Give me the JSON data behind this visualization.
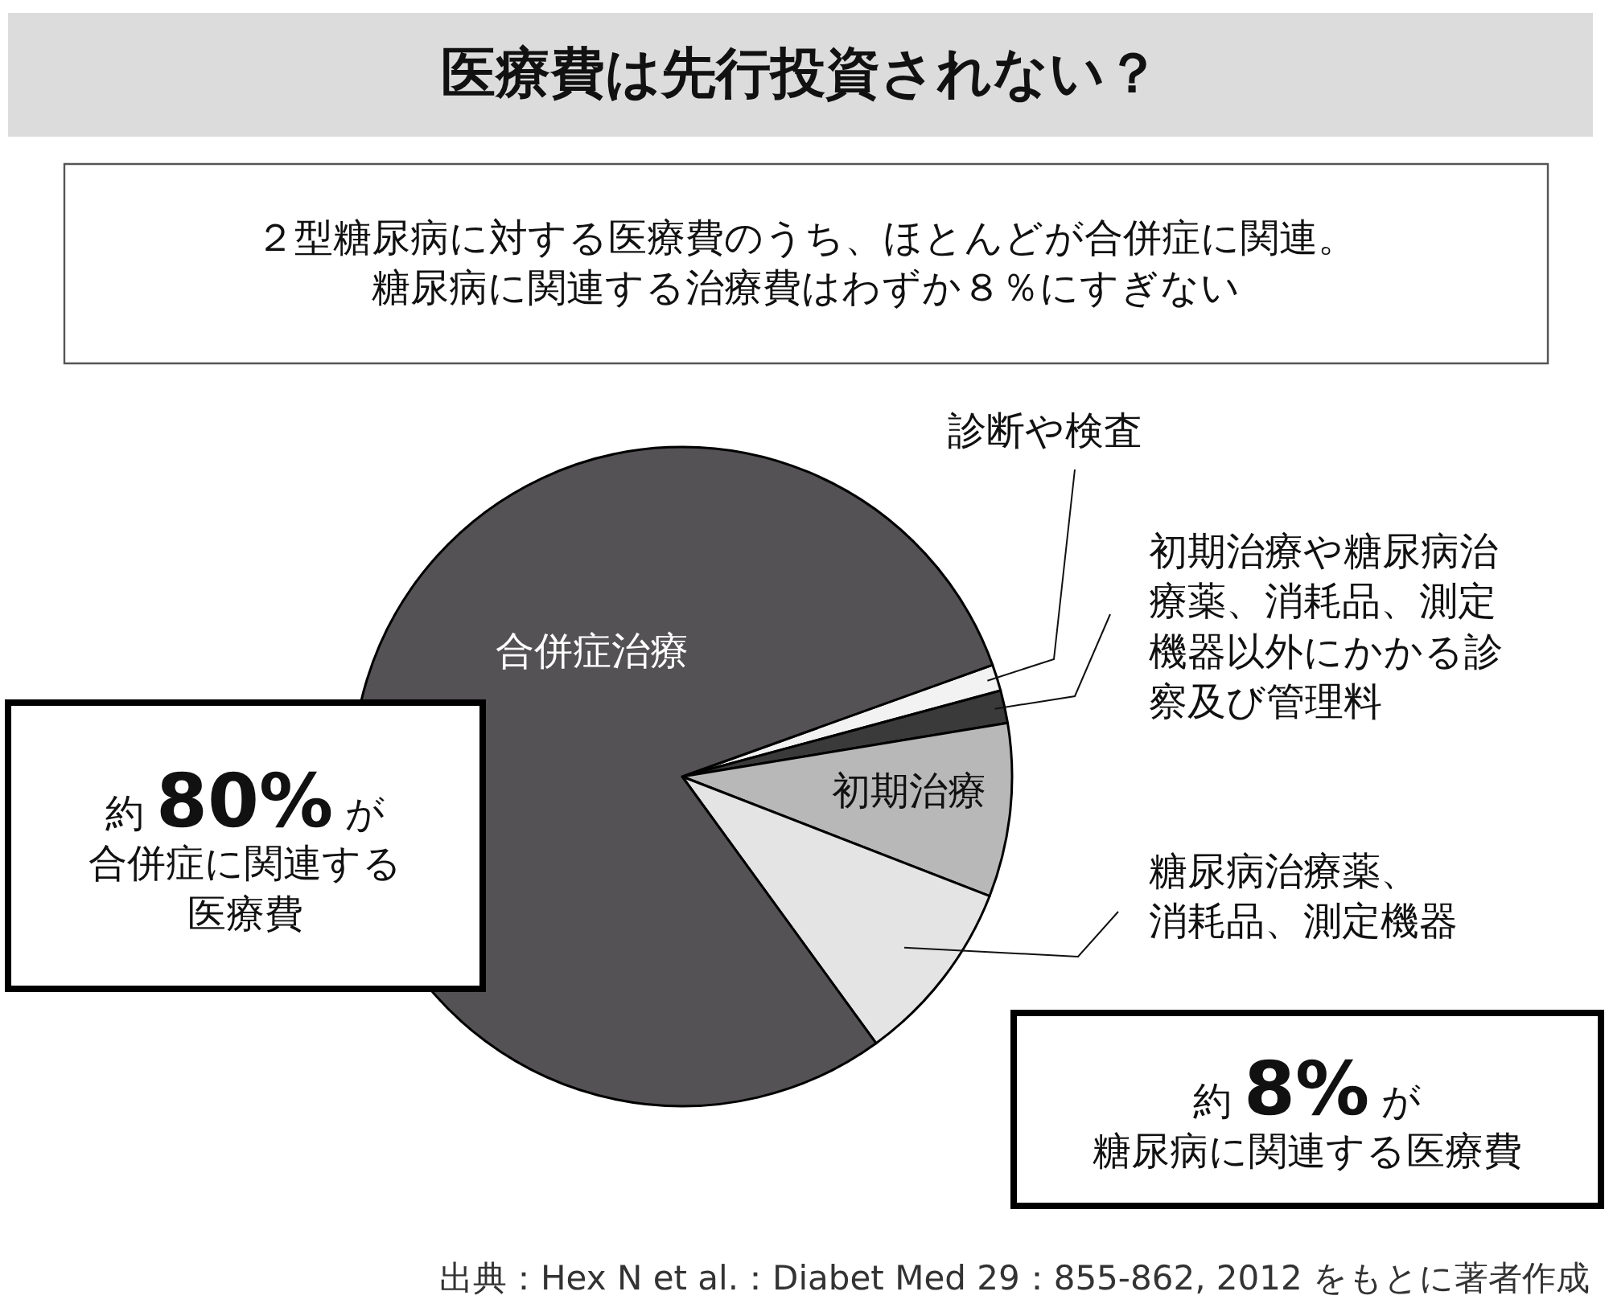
{
  "chart_data": {
    "type": "pie",
    "title": "医療費は先行投資されない？",
    "subtitle": "２型糖尿病に対する医療費のうち、ほとんどが合併症に関連。糖尿病に関連する治療費はわずか８％にすぎない",
    "categories": [
      "診断や検査",
      "初期治療や糖尿病治療薬、消耗品、測定機器以外にかかる診察及び管理料",
      "初期治療",
      "糖尿病治療薬、消耗品、測定機器",
      "合併症治療"
    ],
    "values": [
      1.3,
      1.6,
      8.5,
      9.1,
      79.5
    ],
    "colors": [
      "#f2f2f2",
      "#3a3a3a",
      "#b8b8b8",
      "#e4e4e4",
      "#545254"
    ],
    "legend": false,
    "annotations": [
      "約80%が合併症に関連する医療費",
      "約8%が糖尿病に関連する医療費",
      "出典：Hex N et al.：Diabet Med 29：855-862, 2012 をもとに著者作成"
    ]
  }
}
